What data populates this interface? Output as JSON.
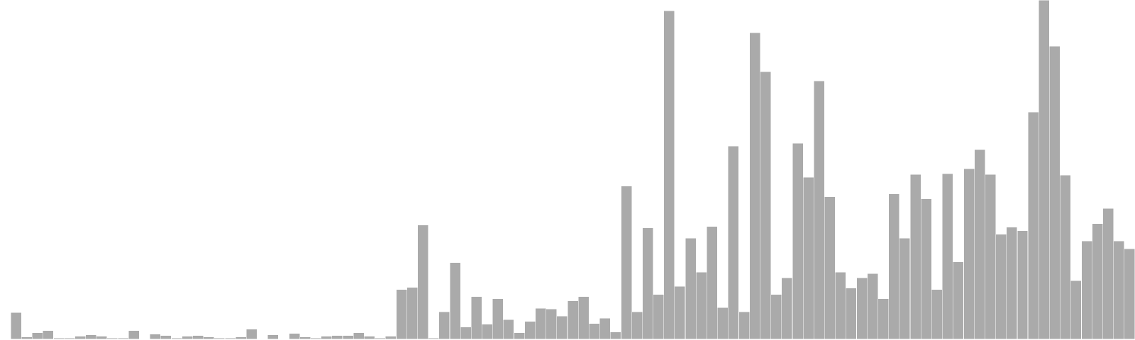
{
  "chart_data": {
    "type": "bar",
    "title": "",
    "xlabel": "",
    "ylabel": "",
    "grid": false,
    "legend": "none",
    "axes_visible": false,
    "bar_color": "#aaaaaa",
    "bar_edge_color": "#ffffff",
    "ylim": [
      0,
      469
    ],
    "values": [
      0,
      37,
      3,
      9,
      12,
      2,
      2,
      4,
      6,
      4,
      2,
      2,
      12,
      0,
      7,
      5,
      2,
      4,
      5,
      3,
      2,
      2,
      3,
      14,
      0,
      6,
      0,
      8,
      3,
      2,
      4,
      5,
      5,
      9,
      4,
      2,
      4,
      69,
      72,
      158,
      2,
      38,
      106,
      17,
      59,
      21,
      56,
      27,
      9,
      25,
      43,
      42,
      32,
      53,
      59,
      22,
      29,
      10,
      212,
      38,
      154,
      62,
      454,
      73,
      140,
      93,
      156,
      44,
      267,
      38,
      424,
      370,
      62,
      85,
      271,
      224,
      357,
      197,
      93,
      71,
      85,
      91,
      56,
      201,
      140,
      228,
      194,
      69,
      229,
      107,
      236,
      262,
      228,
      145,
      155,
      150,
      314,
      469,
      405,
      227,
      81,
      136,
      160,
      181,
      136,
      125
    ]
  }
}
